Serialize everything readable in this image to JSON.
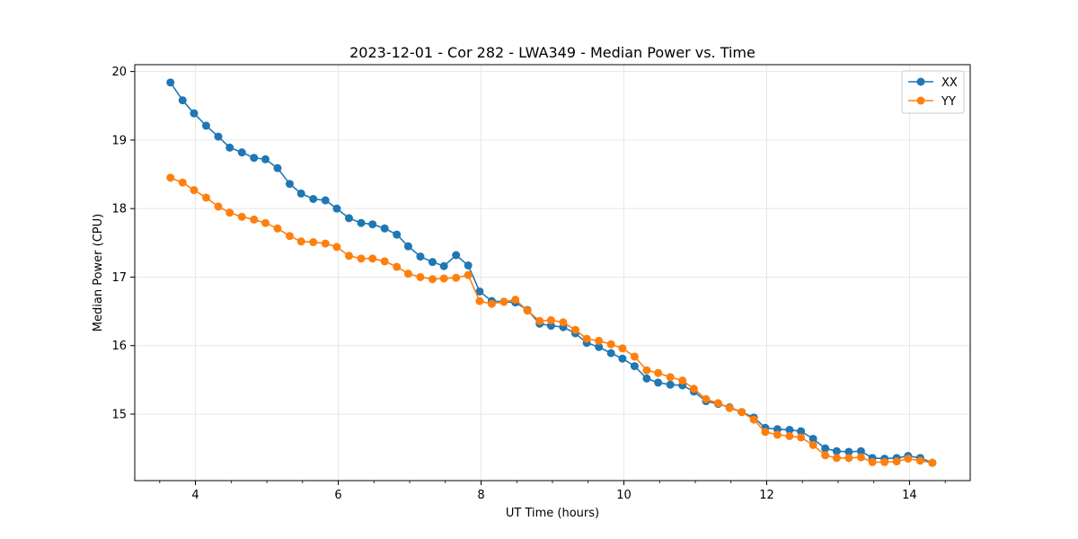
{
  "chart_data": {
    "type": "line",
    "title": "2023-12-01 - Cor 282 - LWA349 - Median Power vs. Time",
    "xlabel": "UT Time (hours)",
    "ylabel": "Median Power (CPU)",
    "xlim": [
      3.15,
      14.85
    ],
    "ylim": [
      14.03,
      20.1
    ],
    "xticks": [
      4,
      6,
      8,
      10,
      12,
      14
    ],
    "yticks": [
      15,
      16,
      17,
      18,
      19,
      20
    ],
    "grid": true,
    "legend_position": "top-right",
    "series": [
      {
        "name": "XX",
        "color": "#1f77b4",
        "x": [
          3.65,
          3.82,
          3.98,
          4.15,
          4.32,
          4.48,
          4.65,
          4.82,
          4.98,
          5.15,
          5.32,
          5.48,
          5.65,
          5.82,
          5.98,
          6.15,
          6.32,
          6.48,
          6.65,
          6.82,
          6.98,
          7.15,
          7.32,
          7.48,
          7.65,
          7.82,
          7.98,
          8.15,
          8.32,
          8.48,
          8.65,
          8.82,
          8.98,
          9.15,
          9.32,
          9.48,
          9.65,
          9.82,
          9.98,
          10.15,
          10.32,
          10.48,
          10.65,
          10.82,
          10.98,
          11.15,
          11.32,
          11.48,
          11.65,
          11.82,
          11.98,
          12.15,
          12.32,
          12.48,
          12.65,
          12.82,
          12.98,
          13.15,
          13.32,
          13.48,
          13.65,
          13.82,
          13.98,
          14.15,
          14.32
        ],
        "values": [
          19.84,
          19.58,
          19.39,
          19.21,
          19.05,
          18.89,
          18.82,
          18.74,
          18.72,
          18.59,
          18.36,
          18.22,
          18.14,
          18.12,
          18.0,
          17.86,
          17.79,
          17.77,
          17.71,
          17.62,
          17.45,
          17.3,
          17.22,
          17.16,
          17.32,
          17.17,
          16.79,
          16.65,
          16.64,
          16.63,
          16.52,
          16.32,
          16.29,
          16.27,
          16.18,
          16.04,
          15.98,
          15.89,
          15.81,
          15.7,
          15.52,
          15.46,
          15.43,
          15.42,
          15.33,
          15.19,
          15.15,
          15.1,
          15.03,
          14.95,
          14.8,
          14.78,
          14.77,
          14.75,
          14.64,
          14.5,
          14.46,
          14.45,
          14.46,
          14.36,
          14.35,
          14.36,
          14.39,
          14.36,
          14.29
        ]
      },
      {
        "name": "YY",
        "color": "#ff7f0e",
        "x": [
          3.65,
          3.82,
          3.98,
          4.15,
          4.32,
          4.48,
          4.65,
          4.82,
          4.98,
          5.15,
          5.32,
          5.48,
          5.65,
          5.82,
          5.98,
          6.15,
          6.32,
          6.48,
          6.65,
          6.82,
          6.98,
          7.15,
          7.32,
          7.48,
          7.65,
          7.82,
          7.98,
          8.15,
          8.32,
          8.48,
          8.65,
          8.82,
          8.98,
          9.15,
          9.32,
          9.48,
          9.65,
          9.82,
          9.98,
          10.15,
          10.32,
          10.48,
          10.65,
          10.82,
          10.98,
          11.15,
          11.32,
          11.48,
          11.65,
          11.82,
          11.98,
          12.15,
          12.32,
          12.48,
          12.65,
          12.82,
          12.98,
          13.15,
          13.32,
          13.48,
          13.65,
          13.82,
          13.98,
          14.15,
          14.32
        ],
        "values": [
          18.45,
          18.38,
          18.27,
          18.16,
          18.03,
          17.94,
          17.88,
          17.84,
          17.79,
          17.71,
          17.6,
          17.52,
          17.51,
          17.49,
          17.44,
          17.31,
          17.27,
          17.27,
          17.23,
          17.15,
          17.05,
          17.0,
          16.97,
          16.98,
          16.99,
          17.03,
          16.65,
          16.61,
          16.64,
          16.67,
          16.51,
          16.36,
          16.37,
          16.34,
          16.23,
          16.1,
          16.07,
          16.02,
          15.96,
          15.84,
          15.64,
          15.6,
          15.54,
          15.49,
          15.37,
          15.22,
          15.16,
          15.09,
          15.03,
          14.92,
          14.74,
          14.7,
          14.68,
          14.66,
          14.55,
          14.4,
          14.36,
          14.36,
          14.37,
          14.3,
          14.3,
          14.31,
          14.35,
          14.32,
          14.29
        ]
      }
    ]
  }
}
